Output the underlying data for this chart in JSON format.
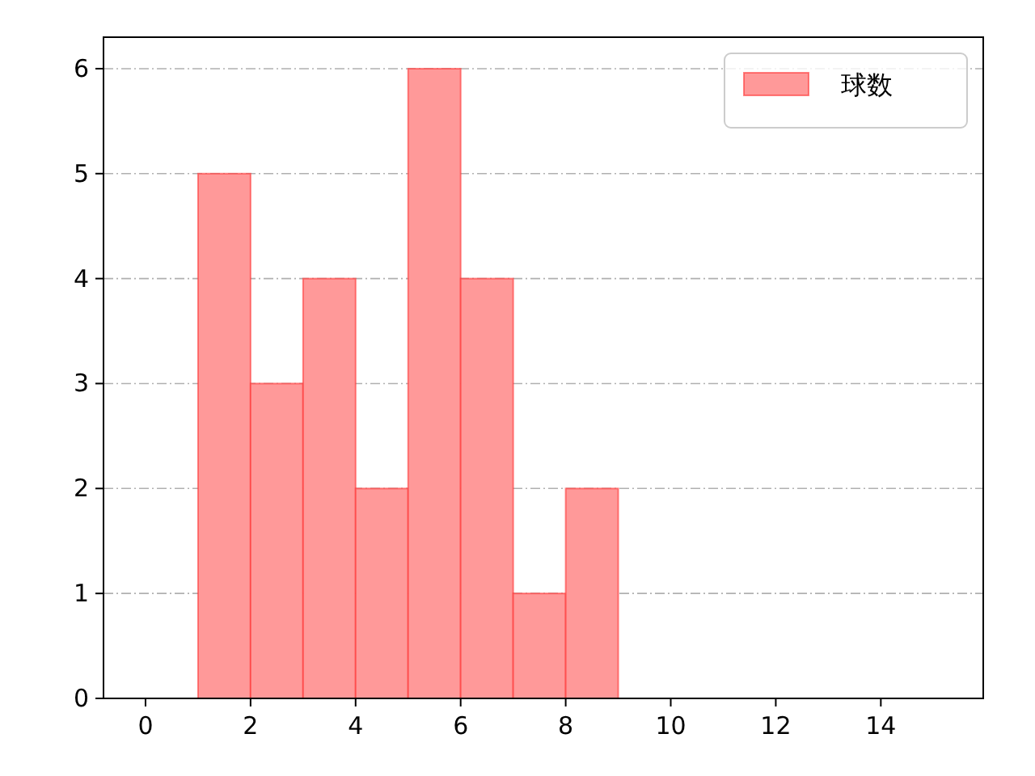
{
  "chart_data": {
    "type": "histogram",
    "bins": [
      1,
      2,
      3,
      4,
      5,
      6,
      7,
      8,
      9
    ],
    "series": [
      {
        "name": "球数",
        "color": "#ff9999",
        "values": [
          5,
          3,
          4,
          2,
          6,
          4,
          1,
          2
        ]
      }
    ],
    "xlim": [
      -0.8,
      15.95
    ],
    "xticks": [
      0,
      2,
      4,
      6,
      8,
      10,
      12,
      14
    ],
    "ylim": [
      0,
      6.3
    ],
    "yticks": [
      0,
      1,
      2,
      3,
      4,
      5,
      6
    ],
    "grid": "y",
    "legend": "top right"
  }
}
